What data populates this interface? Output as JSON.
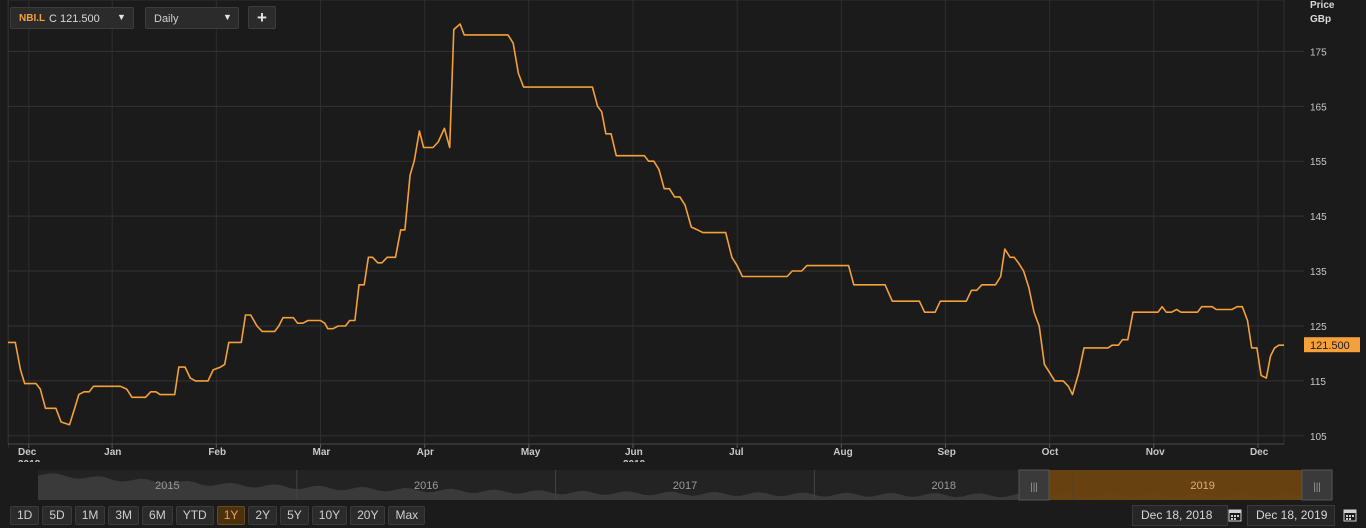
{
  "toolbar": {
    "symbol": "NBI.L",
    "close_value": "C 121.500",
    "interval": "Daily",
    "add_label": "+"
  },
  "colors": {
    "line": "#f5a03a",
    "grid": "#333333",
    "background": "#1b1b1b"
  },
  "chart_data": {
    "type": "line",
    "ylabel": "Price",
    "yunit": "GBp",
    "y_ticks": [
      105,
      115,
      125,
      135,
      145,
      155,
      165,
      175
    ],
    "ylim": [
      103.5,
      184
    ],
    "xlim": [
      0,
      12.25
    ],
    "last_value_label": "121.500",
    "x_ticks": [
      {
        "label": "Dec",
        "sub": "2018",
        "pos": 0.2
      },
      {
        "label": "Jan",
        "sub": "",
        "pos": 1.0
      },
      {
        "label": "Feb",
        "sub": "",
        "pos": 2.0
      },
      {
        "label": "Mar",
        "sub": "",
        "pos": 3.0
      },
      {
        "label": "Apr",
        "sub": "",
        "pos": 4.0
      },
      {
        "label": "May",
        "sub": "",
        "pos": 5.0
      },
      {
        "label": "Jun",
        "sub": "2019",
        "pos": 6.0
      },
      {
        "label": "Jul",
        "sub": "",
        "pos": 7.0
      },
      {
        "label": "Aug",
        "sub": "",
        "pos": 8.0
      },
      {
        "label": "Sep",
        "sub": "",
        "pos": 9.0
      },
      {
        "label": "Oct",
        "sub": "",
        "pos": 10.0
      },
      {
        "label": "Nov",
        "sub": "",
        "pos": 11.0
      },
      {
        "label": "Dec",
        "sub": "",
        "pos": 12.0
      }
    ],
    "grid": true,
    "series": [
      {
        "values": [
          [
            0.0,
            122
          ],
          [
            0.07,
            122
          ],
          [
            0.12,
            117
          ],
          [
            0.16,
            114.5
          ],
          [
            0.27,
            114.5
          ],
          [
            0.31,
            113.5
          ],
          [
            0.36,
            110
          ],
          [
            0.46,
            110
          ],
          [
            0.51,
            107.5
          ],
          [
            0.59,
            107
          ],
          [
            0.64,
            110
          ],
          [
            0.68,
            112.5
          ],
          [
            0.73,
            113
          ],
          [
            0.78,
            113
          ],
          [
            0.82,
            114
          ],
          [
            1.08,
            114
          ],
          [
            1.14,
            113.5
          ],
          [
            1.19,
            112
          ],
          [
            1.32,
            112
          ],
          [
            1.37,
            113
          ],
          [
            1.42,
            113
          ],
          [
            1.46,
            112.5
          ],
          [
            1.6,
            112.5
          ],
          [
            1.64,
            117.5
          ],
          [
            1.7,
            117.5
          ],
          [
            1.75,
            115.5
          ],
          [
            1.8,
            115
          ],
          [
            1.92,
            115
          ],
          [
            1.97,
            117
          ],
          [
            2.04,
            117.5
          ],
          [
            2.08,
            118
          ],
          [
            2.12,
            122
          ],
          [
            2.24,
            122
          ],
          [
            2.28,
            127
          ],
          [
            2.33,
            127
          ],
          [
            2.39,
            125
          ],
          [
            2.44,
            124
          ],
          [
            2.56,
            124
          ],
          [
            2.6,
            125
          ],
          [
            2.64,
            126.5
          ],
          [
            2.74,
            126.5
          ],
          [
            2.78,
            125.5
          ],
          [
            2.83,
            125.5
          ],
          [
            2.88,
            126
          ],
          [
            3.0,
            126
          ],
          [
            3.04,
            125.5
          ],
          [
            3.07,
            124.5
          ],
          [
            3.12,
            124.5
          ],
          [
            3.17,
            125
          ],
          [
            3.24,
            125
          ],
          [
            3.28,
            126
          ],
          [
            3.33,
            126
          ],
          [
            3.37,
            132.5
          ],
          [
            3.42,
            132.5
          ],
          [
            3.46,
            137.5
          ],
          [
            3.5,
            137.5
          ],
          [
            3.55,
            136.5
          ],
          [
            3.59,
            136.5
          ],
          [
            3.64,
            137.5
          ],
          [
            3.72,
            137.5
          ],
          [
            3.77,
            142.5
          ],
          [
            3.81,
            142.5
          ],
          [
            3.86,
            152.5
          ],
          [
            3.9,
            155
          ],
          [
            3.95,
            160.5
          ],
          [
            3.99,
            157.5
          ],
          [
            4.08,
            157.5
          ],
          [
            4.13,
            158.5
          ],
          [
            4.19,
            161
          ],
          [
            4.24,
            157.5
          ],
          [
            4.28,
            179
          ],
          [
            4.34,
            180
          ],
          [
            4.38,
            178
          ],
          [
            4.8,
            178
          ],
          [
            4.85,
            176.5
          ],
          [
            4.9,
            171
          ],
          [
            4.95,
            168.5
          ],
          [
            5.61,
            168.5
          ],
          [
            5.66,
            165
          ],
          [
            5.7,
            164
          ],
          [
            5.74,
            160
          ],
          [
            5.79,
            160
          ],
          [
            5.84,
            156
          ],
          [
            6.11,
            156
          ],
          [
            6.15,
            155
          ],
          [
            6.2,
            155
          ],
          [
            6.25,
            153.5
          ],
          [
            6.3,
            150
          ],
          [
            6.35,
            150
          ],
          [
            6.4,
            148.5
          ],
          [
            6.45,
            148.5
          ],
          [
            6.5,
            147
          ],
          [
            6.56,
            143
          ],
          [
            6.62,
            142.5
          ],
          [
            6.67,
            142
          ],
          [
            6.89,
            142
          ],
          [
            6.95,
            137.5
          ],
          [
            7.0,
            136
          ],
          [
            7.05,
            134
          ],
          [
            7.48,
            134
          ],
          [
            7.53,
            135
          ],
          [
            7.62,
            135
          ],
          [
            7.67,
            136
          ],
          [
            8.07,
            136
          ],
          [
            8.12,
            132.5
          ],
          [
            8.42,
            132.5
          ],
          [
            8.49,
            129.5
          ],
          [
            8.75,
            129.5
          ],
          [
            8.8,
            127.5
          ],
          [
            8.9,
            127.5
          ],
          [
            8.95,
            129.5
          ],
          [
            9.2,
            129.5
          ],
          [
            9.25,
            131.5
          ],
          [
            9.3,
            131.5
          ],
          [
            9.35,
            132.5
          ],
          [
            9.48,
            132.5
          ],
          [
            9.53,
            134
          ],
          [
            9.57,
            139
          ],
          [
            9.62,
            137.5
          ],
          [
            9.66,
            137.5
          ],
          [
            9.7,
            136.5
          ],
          [
            9.75,
            135
          ],
          [
            9.8,
            132
          ],
          [
            9.85,
            127.5
          ],
          [
            9.9,
            125
          ],
          [
            9.95,
            118
          ],
          [
            10.0,
            116.5
          ],
          [
            10.05,
            115
          ],
          [
            10.13,
            115
          ],
          [
            10.18,
            114
          ],
          [
            10.22,
            112.5
          ],
          [
            10.28,
            116.5
          ],
          [
            10.33,
            121
          ],
          [
            10.56,
            121
          ],
          [
            10.6,
            121.5
          ],
          [
            10.66,
            121.5
          ],
          [
            10.7,
            122.5
          ],
          [
            10.75,
            122.5
          ],
          [
            10.8,
            127.5
          ],
          [
            11.04,
            127.5
          ],
          [
            11.08,
            128.5
          ],
          [
            11.12,
            127.5
          ],
          [
            11.17,
            127.5
          ],
          [
            11.22,
            128
          ],
          [
            11.26,
            127.5
          ],
          [
            11.42,
            127.5
          ],
          [
            11.46,
            128.5
          ],
          [
            11.56,
            128.5
          ],
          [
            11.6,
            128
          ],
          [
            11.75,
            128
          ],
          [
            11.8,
            128.5
          ],
          [
            11.85,
            128.5
          ],
          [
            11.9,
            126
          ],
          [
            11.94,
            121
          ],
          [
            11.99,
            121
          ],
          [
            12.03,
            116
          ],
          [
            12.08,
            115.5
          ],
          [
            12.12,
            119.5
          ],
          [
            12.16,
            121
          ],
          [
            12.2,
            121.5
          ],
          [
            12.25,
            121.5
          ]
        ]
      }
    ]
  },
  "navigator": {
    "years": [
      "2015",
      "2016",
      "2017",
      "2018",
      "2019"
    ],
    "handle_left": "|||",
    "handle_right": "|||"
  },
  "range_buttons": [
    "1D",
    "5D",
    "1M",
    "3M",
    "6M",
    "YTD",
    "1Y",
    "2Y",
    "5Y",
    "10Y",
    "20Y",
    "Max"
  ],
  "active_range": "1Y",
  "date_range": {
    "start": "Dec 18, 2018",
    "end": "Dec 18, 2019"
  }
}
